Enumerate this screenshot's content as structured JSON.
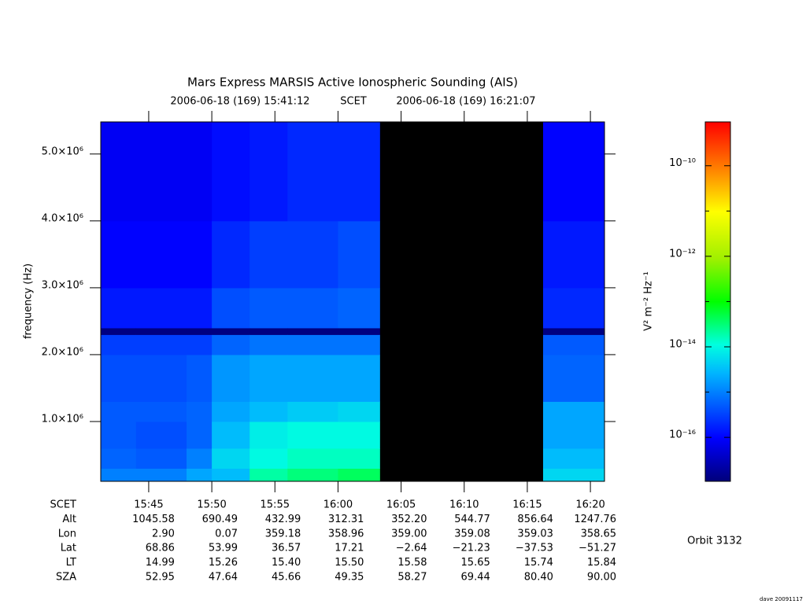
{
  "chart_data": {
    "type": "spectrogram",
    "title": "Mars Express MARSIS Active Ionospheric Sounding (AIS)",
    "start_time": "2006-06-18 (169) 15:41:12",
    "time_label": "SCET",
    "end_time": "2006-06-18 (169) 16:21:07",
    "ylabel": "frequency (Hz)",
    "xlim": [
      41.2,
      81.117
    ],
    "xticks": [
      {
        "value": 45,
        "label": "15:45"
      },
      {
        "value": 50,
        "label": "15:50"
      },
      {
        "value": 55,
        "label": "15:55"
      },
      {
        "value": 60,
        "label": "16:00"
      },
      {
        "value": 65,
        "label": "16:05"
      },
      {
        "value": 70,
        "label": "16:10"
      },
      {
        "value": 75,
        "label": "16:15"
      },
      {
        "value": 80,
        "label": "16:20"
      }
    ],
    "ylim": [
      106000,
      5480000
    ],
    "yticks": [
      {
        "value": 1000000,
        "label": "1.0×10⁶"
      },
      {
        "value": 2000000,
        "label": "2.0×10⁶"
      },
      {
        "value": 3000000,
        "label": "3.0×10⁶"
      },
      {
        "value": 4000000,
        "label": "4.0×10⁶"
      },
      {
        "value": 5000000,
        "label": "5.0×10⁶"
      }
    ],
    "colorbar_label": "V² m⁻² Hz⁻¹",
    "zlog": true,
    "zlim": [
      1.07e-17,
      9.3e-10
    ],
    "zticks": [
      {
        "value": 1e-10,
        "label": "10⁻¹⁰"
      },
      {
        "value": 1e-12,
        "label": "10⁻¹²"
      },
      {
        "value": 1e-14,
        "label": "10⁻¹⁴"
      },
      {
        "value": 1e-16,
        "label": "10⁻¹⁶"
      }
    ],
    "zminorticks": [
      1e-11,
      1e-13,
      1e-15
    ],
    "time_bins": [
      41.2,
      44,
      48,
      50,
      53,
      56,
      60,
      63.3,
      76.25,
      78,
      81.117
    ],
    "freq_bins": [
      106000,
      300000,
      600000,
      1000000,
      1300000,
      2000000,
      2300000,
      2400000,
      3000000,
      4000000,
      5480000
    ],
    "z": [
      [
        1e-15,
        6e-16,
        5e-16,
        5e-16,
        4e-16,
        3e-16,
        1.2e-17,
        1.5e-16,
        1e-16,
        8e-17
      ],
      [
        1e-15,
        5e-16,
        4e-16,
        5e-16,
        4e-16,
        3e-16,
        1.2e-17,
        1.5e-16,
        1e-16,
        8e-17
      ],
      [
        2e-15,
        1e-15,
        6e-16,
        6e-16,
        5e-16,
        3e-16,
        1.2e-17,
        1.5e-16,
        1e-16,
        8e-17
      ],
      [
        3e-15,
        5e-15,
        3e-15,
        2e-15,
        1.5e-15,
        6e-16,
        1.2e-17,
        4e-16,
        2e-16,
        1.2e-16
      ],
      [
        2e-14,
        1e-14,
        8e-15,
        3e-15,
        2e-15,
        8e-16,
        1.2e-17,
        5e-16,
        3e-16,
        1.5e-16
      ],
      [
        3e-14,
        1.5e-14,
        1e-14,
        4e-15,
        2e-15,
        8e-16,
        1.2e-17,
        5e-16,
        3e-16,
        2e-16
      ],
      [
        4e-14,
        1.5e-14,
        1e-14,
        5e-15,
        2e-15,
        8e-16,
        1.2e-17,
        6e-16,
        4e-16,
        2e-16
      ],
      [
        null,
        null,
        null,
        null,
        null,
        null,
        null,
        null,
        null,
        null
      ],
      [
        5e-15,
        3e-15,
        2e-15,
        2e-15,
        6e-16,
        5e-16,
        1.2e-17,
        2e-16,
        1.5e-16,
        1e-16
      ],
      [
        5e-15,
        3e-15,
        2e-15,
        2e-15,
        6e-16,
        5e-16,
        1.2e-17,
        2e-16,
        1.5e-16,
        1e-16
      ]
    ],
    "ephemeris": [
      {
        "label": "SCET"
      },
      {
        "label": "Alt",
        "values": [
          "1045.58",
          "690.49",
          "432.99",
          "312.31",
          "352.20",
          "544.77",
          "856.64",
          "1247.76"
        ]
      },
      {
        "label": "Lon",
        "values": [
          "2.90",
          "0.07",
          "359.18",
          "358.96",
          "359.00",
          "359.08",
          "359.03",
          "358.65"
        ]
      },
      {
        "label": "Lat",
        "values": [
          "68.86",
          "53.99",
          "36.57",
          "17.21",
          "−2.64",
          "−21.23",
          "−37.53",
          "−51.27"
        ]
      },
      {
        "label": "LT",
        "values": [
          "14.99",
          "15.26",
          "15.40",
          "15.50",
          "15.58",
          "15.65",
          "15.74",
          "15.84"
        ]
      },
      {
        "label": "SZA",
        "values": [
          "52.95",
          "47.64",
          "45.66",
          "49.35",
          "58.27",
          "69.44",
          "80.40",
          "90.00"
        ]
      }
    ],
    "orbit": "Orbit 3132",
    "credit": "dave 20091117"
  }
}
